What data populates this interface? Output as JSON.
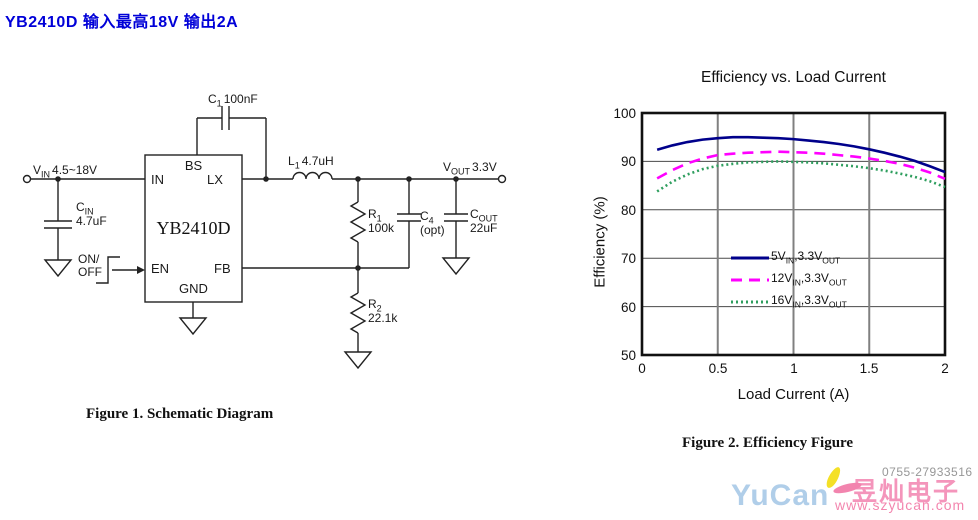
{
  "page": {
    "title": "YB2410D 输入最高18V 输出2A"
  },
  "schematic": {
    "caption": "Figure 1. Schematic Diagram",
    "ic": {
      "name": "YB2410D",
      "pins": {
        "bs": "BS",
        "in": "IN",
        "lx": "LX",
        "en": "EN",
        "fb": "FB",
        "gnd": "GND"
      }
    },
    "labels": {
      "vin": {
        "sym": "V",
        "sub": "IN",
        "value": "4.5~18V"
      },
      "cin": {
        "sym": "C",
        "sub": "IN",
        "value": "4.7uF"
      },
      "onoff": {
        "line1": "ON/",
        "line2": "OFF"
      },
      "c1": {
        "sym": "C",
        "sub": "1",
        "value": "100nF"
      },
      "l1": {
        "sym": "L",
        "sub": "1",
        "value": "4.7uH"
      },
      "vout": {
        "sym": "V",
        "sub": "OUT",
        "value": "3.3V"
      },
      "r1": {
        "sym": "R",
        "sub": "1",
        "value": "100k"
      },
      "c4": {
        "sym": "C",
        "sub": "4",
        "value": "(opt)"
      },
      "cout": {
        "sym": "C",
        "sub": "OUT",
        "value": "22uF"
      },
      "r2": {
        "sym": "R",
        "sub": "2",
        "value": "22.1k"
      }
    }
  },
  "chart": {
    "caption": "Figure 2. Efficiency Figure",
    "title": "Efficiency vs. Load Current",
    "ylabel": "Efficiency (%)",
    "xlabel": "Load Current (A)",
    "y_ticks": [
      "100",
      "90",
      "80",
      "70",
      "60",
      "50"
    ],
    "x_ticks": [
      "0",
      "0.5",
      "1",
      "1.5",
      "2"
    ],
    "legend": [
      {
        "prefix": "5V",
        "sub1": "IN",
        "mid": ",3.3V",
        "sub2": "OUT"
      },
      {
        "prefix": "12V",
        "sub1": "IN",
        "mid": ",3.3V",
        "sub2": "OUT"
      },
      {
        "prefix": "16V",
        "sub1": "IN",
        "mid": ",3.3V",
        "sub2": "OUT"
      }
    ]
  },
  "chart_data": {
    "type": "line",
    "title": "Efficiency vs. Load Current",
    "xlabel": "Load Current (A)",
    "ylabel": "Efficiency (%)",
    "xlim": [
      0,
      2
    ],
    "ylim": [
      50,
      100
    ],
    "x_gridlines": [
      0.5,
      1,
      1.5
    ],
    "y_gridlines": [
      60,
      70,
      80,
      90
    ],
    "grid": true,
    "legend_position": "inside-center",
    "series": [
      {
        "name": "5VIN, 3.3VOUT",
        "color": "#00008B",
        "style": "solid",
        "x": [
          0.1,
          0.2,
          0.3,
          0.4,
          0.5,
          0.6,
          0.7,
          0.8,
          0.9,
          1.0,
          1.1,
          1.2,
          1.3,
          1.4,
          1.5,
          1.6,
          1.7,
          1.8,
          1.9,
          2.0
        ],
        "y": [
          92.4,
          93.3,
          94.0,
          94.5,
          94.8,
          95.0,
          95.0,
          94.9,
          94.8,
          94.6,
          94.3,
          94.0,
          93.6,
          93.1,
          92.5,
          91.8,
          91.0,
          90.1,
          89.0,
          87.8
        ]
      },
      {
        "name": "12VIN, 3.3VOUT",
        "color": "#FF00FF",
        "style": "dashed",
        "x": [
          0.1,
          0.2,
          0.3,
          0.4,
          0.5,
          0.6,
          0.7,
          0.8,
          0.9,
          1.0,
          1.1,
          1.2,
          1.3,
          1.4,
          1.5,
          1.6,
          1.7,
          1.8,
          1.9,
          2.0
        ],
        "y": [
          86.5,
          88.2,
          89.6,
          90.6,
          91.3,
          91.6,
          91.8,
          91.9,
          92.0,
          91.9,
          91.8,
          91.6,
          91.3,
          91.0,
          90.6,
          90.1,
          89.5,
          88.7,
          87.7,
          86.4
        ]
      },
      {
        "name": "16VIN, 3.3VOUT",
        "color": "#2E9E5E",
        "style": "dotted",
        "x": [
          0.1,
          0.2,
          0.3,
          0.4,
          0.5,
          0.6,
          0.7,
          0.8,
          0.9,
          1.0,
          1.1,
          1.2,
          1.3,
          1.4,
          1.5,
          1.6,
          1.7,
          1.8,
          1.9,
          2.0
        ],
        "y": [
          83.8,
          85.8,
          87.3,
          88.4,
          89.1,
          89.5,
          89.8,
          89.9,
          90.0,
          89.9,
          89.8,
          89.6,
          89.3,
          89.0,
          88.6,
          88.1,
          87.5,
          86.8,
          85.9,
          84.7
        ]
      }
    ]
  },
  "watermark": {
    "brand": "YuCan",
    "brand_cn": "昱灿电子",
    "phone": "0755-27933516",
    "url": "www.szyucan.com"
  }
}
